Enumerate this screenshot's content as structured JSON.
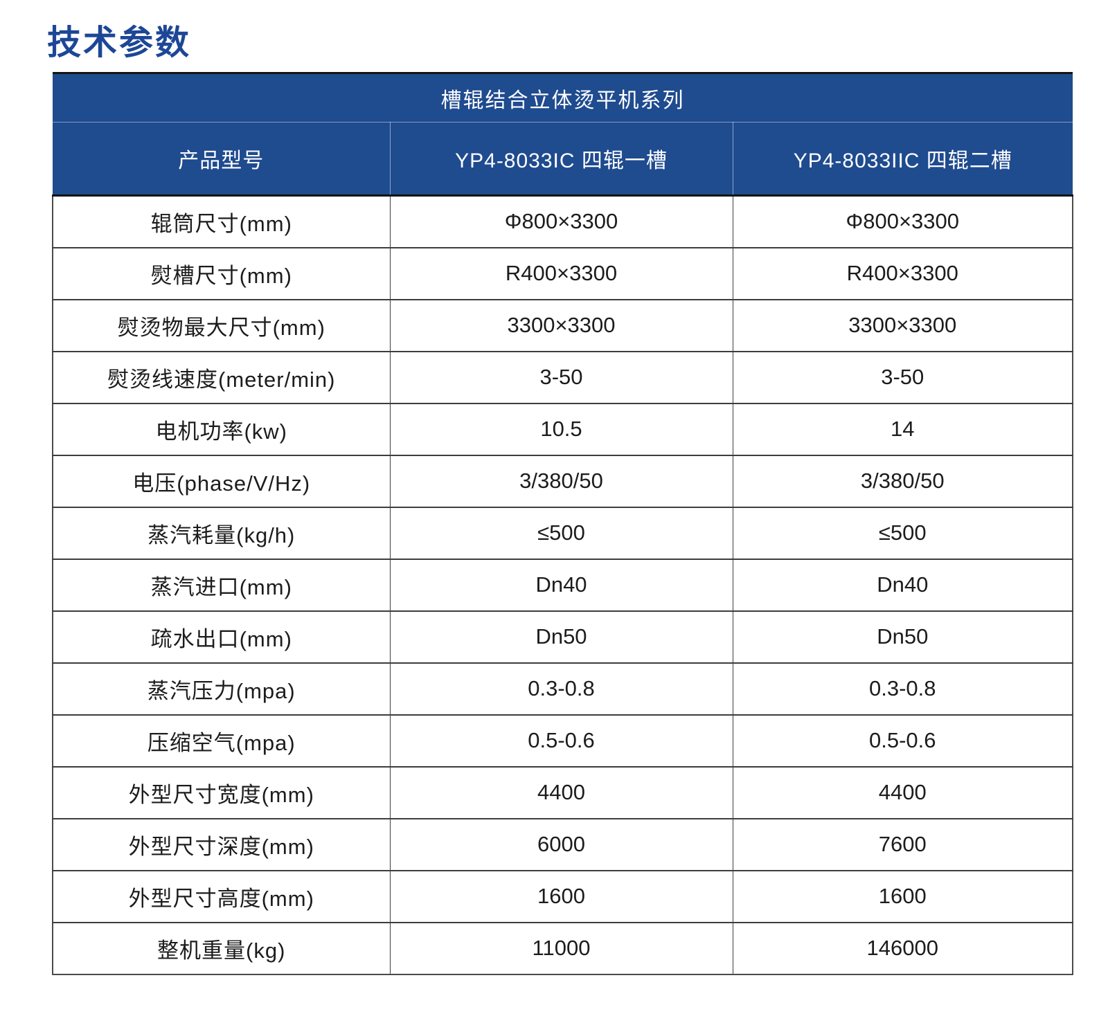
{
  "page_title": "技术参数",
  "colors": {
    "title_color": "#1d4796",
    "header_bg": "#1f4b8f",
    "header_text": "#ffffff",
    "body_text": "#1c1c1c",
    "border_dark": "#141414",
    "border_gray": "#3c3c3c"
  },
  "table": {
    "series_header": "槽辊结合立体烫平机系列",
    "columns": [
      "产品型号",
      "YP4-8033IC 四辊一槽",
      "YP4-8033IIC 四辊二槽"
    ],
    "rows": [
      {
        "label": "辊筒尺寸(mm)",
        "values": [
          "Φ800×3300",
          "Φ800×3300"
        ]
      },
      {
        "label": "熨槽尺寸(mm)",
        "values": [
          "R400×3300",
          "R400×3300"
        ]
      },
      {
        "label": "熨烫物最大尺寸(mm)",
        "values": [
          "3300×3300",
          "3300×3300"
        ]
      },
      {
        "label": "熨烫线速度(meter/min)",
        "values": [
          "3-50",
          "3-50"
        ]
      },
      {
        "label": "电机功率(kw)",
        "values": [
          "10.5",
          "14"
        ]
      },
      {
        "label": "电压(phase/V/Hz)",
        "values": [
          "3/380/50",
          "3/380/50"
        ]
      },
      {
        "label": "蒸汽耗量(kg/h)",
        "values": [
          "≤500",
          "≤500"
        ]
      },
      {
        "label": "蒸汽进口(mm)",
        "values": [
          "Dn40",
          "Dn40"
        ]
      },
      {
        "label": "疏水出口(mm)",
        "values": [
          "Dn50",
          "Dn50"
        ]
      },
      {
        "label": "蒸汽压力(mpa)",
        "values": [
          "0.3-0.8",
          "0.3-0.8"
        ]
      },
      {
        "label": "压缩空气(mpa)",
        "values": [
          "0.5-0.6",
          "0.5-0.6"
        ]
      },
      {
        "label": "外型尺寸宽度(mm)",
        "values": [
          "4400",
          "4400"
        ]
      },
      {
        "label": "外型尺寸深度(mm)",
        "values": [
          "6000",
          "7600"
        ]
      },
      {
        "label": "外型尺寸高度(mm)",
        "values": [
          "1600",
          "1600"
        ]
      },
      {
        "label": "整机重量(kg)",
        "values": [
          "11000",
          "146000"
        ]
      }
    ]
  }
}
